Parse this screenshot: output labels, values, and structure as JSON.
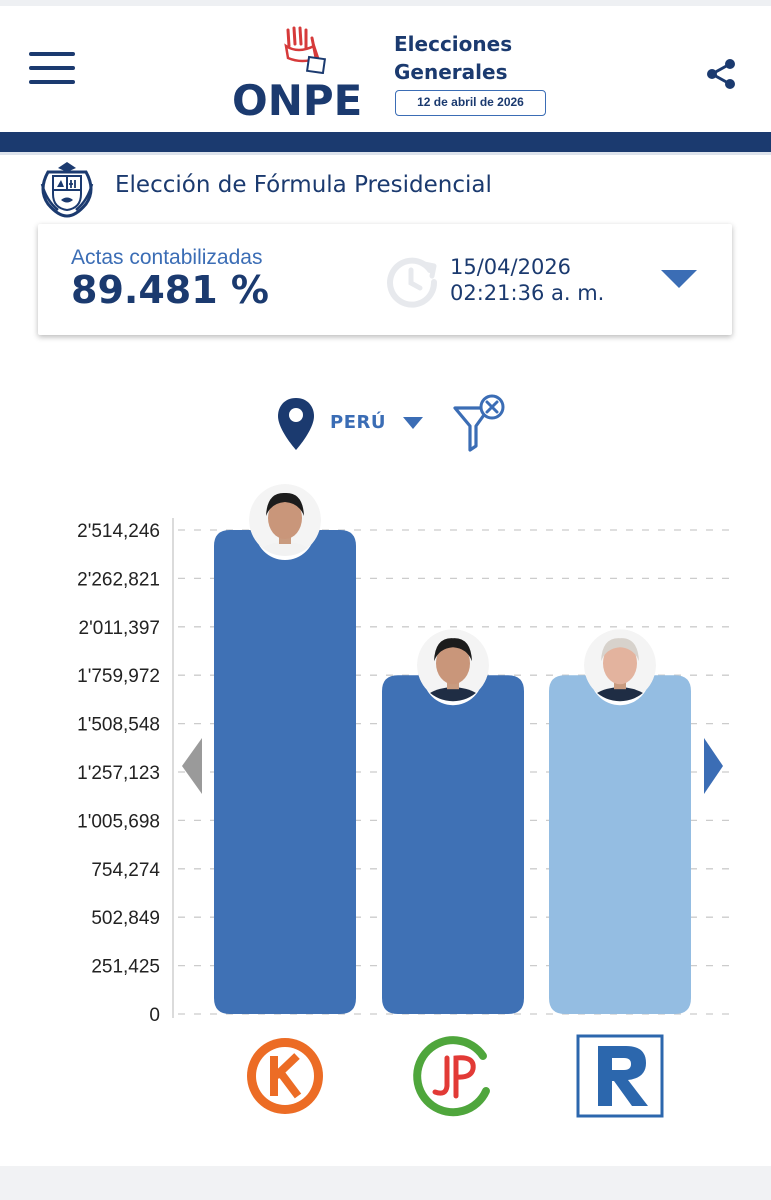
{
  "header": {
    "logo_text": "ONPE",
    "title_line1": "Elecciones",
    "title_line2": "Generales",
    "date_badge": "12 de abril de 2026"
  },
  "section": {
    "title": "Elección de Fórmula Presidencial"
  },
  "summary": {
    "actas_label": "Actas contabilizadas",
    "actas_value": "89.481 %",
    "date": "15/04/2026",
    "time": "02:21:36 a. m."
  },
  "filter": {
    "region": "PERÚ"
  },
  "colors": {
    "navy": "#1b3a6f",
    "accent_blue": "#3b6db5",
    "bar_dark": "#3f71b5",
    "bar_light": "#94bde2"
  },
  "icons": [
    "menu-icon",
    "share-icon",
    "coat-of-arms-icon",
    "clock-icon",
    "chevron-down-icon",
    "location-pin-icon",
    "filter-clear-icon",
    "chevron-left-icon",
    "chevron-right-icon"
  ],
  "chart_data": {
    "type": "bar",
    "title": "",
    "xlabel": "",
    "ylabel": "",
    "ylim": [
      0,
      2514246
    ],
    "y_ticks": [
      0,
      251425,
      502849,
      754274,
      1005698,
      1257123,
      1508548,
      1759972,
      2011397,
      2262821,
      2514246
    ],
    "y_tick_labels": [
      "0",
      "251,425",
      "502,849",
      "754,274",
      "1'005,698",
      "1'257,123",
      "1'508,548",
      "1'759,972",
      "2'011,397",
      "2'262,821",
      "2'514,246"
    ],
    "categories": [
      "K",
      "JP",
      "R"
    ],
    "values": [
      2514246,
      1759972,
      1759972
    ],
    "bar_colors": [
      "#3f71b5",
      "#3f71b5",
      "#94bde2"
    ],
    "grid": true
  }
}
